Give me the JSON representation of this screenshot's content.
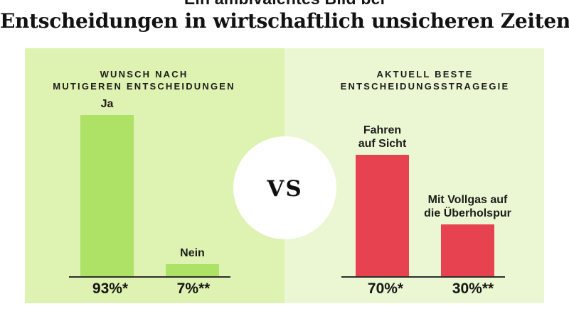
{
  "header": {
    "kicker": "Ein ambivalentes Bild bei",
    "title": "Entscheidungen in wirtschaftlich unsicheren Zeiten"
  },
  "vs": {
    "label": "VS"
  },
  "colors": {
    "left_panel_bg": "#def2b1",
    "right_panel_bg": "#ebf7d3",
    "left_bar": "#aee266",
    "right_bar": "#e7424f",
    "axis": "#2d2d2b",
    "text": "#1c1c1a"
  },
  "chart_data": [
    {
      "type": "bar",
      "title": "WUNSCH NACH MUTIGEREN ENTSCHEIDUNGEN",
      "title_lines": [
        "WUNSCH NACH",
        "MUTIGEREN ENTSCHEIDUNGEN"
      ],
      "categories": [
        "Ja",
        "Nein"
      ],
      "values": [
        93,
        7
      ],
      "value_labels": [
        "93%*",
        "7%**"
      ],
      "unit": "%",
      "ylim": [
        0,
        100
      ],
      "grid": false,
      "legend": false,
      "bar_color": "#aee266",
      "panel_color": "#def2b1"
    },
    {
      "type": "bar",
      "title": "AKTUELL BESTE ENTSCHEIDUNGSSTRAGEGIE",
      "title_lines": [
        "AKTUELL BESTE",
        "ENTSCHEIDUNGSSTRAGEGIE"
      ],
      "categories": [
        "Fahren auf Sicht",
        "Mit Vollgas auf die Überholspur"
      ],
      "category_lines": [
        [
          "Fahren",
          "auf Sicht"
        ],
        [
          "Mit Vollgas auf",
          "die Überholspur"
        ]
      ],
      "values": [
        70,
        30
      ],
      "value_labels": [
        "70%*",
        "30%**"
      ],
      "unit": "%",
      "ylim": [
        0,
        100
      ],
      "grid": false,
      "legend": false,
      "bar_color": "#e7424f",
      "panel_color": "#ebf7d3"
    }
  ]
}
